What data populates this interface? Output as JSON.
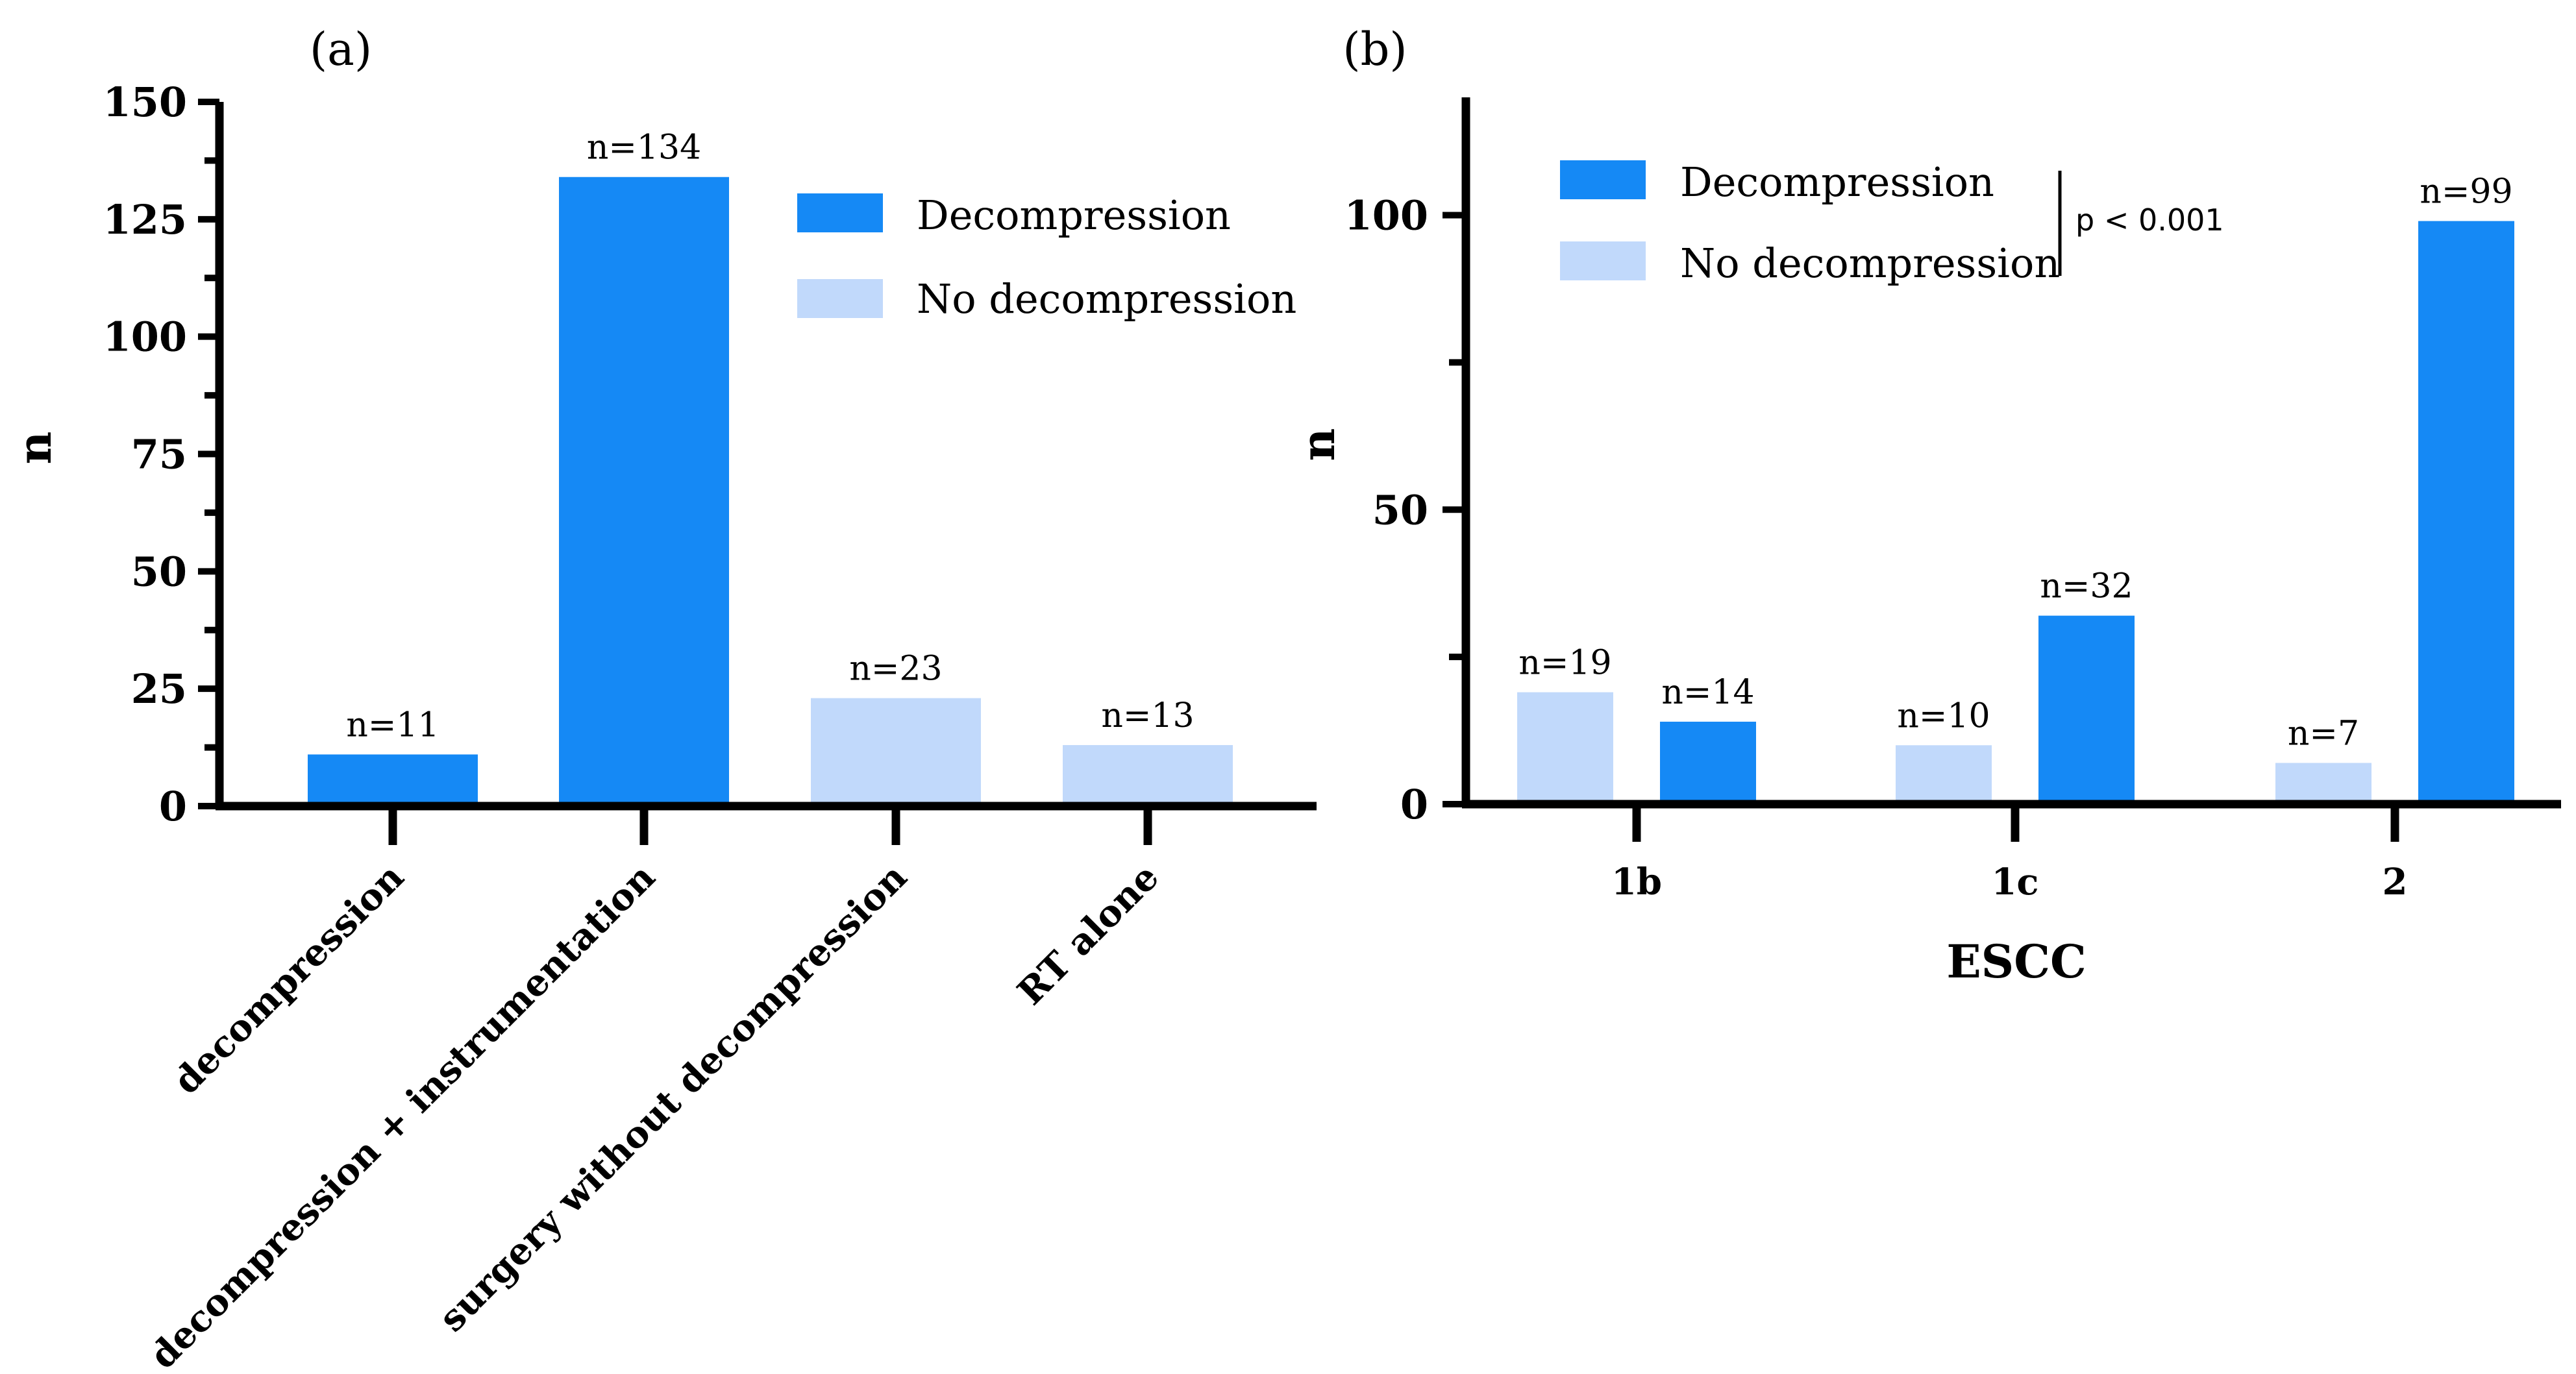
{
  "colors": {
    "decompression": "#1589F5",
    "no_decompression": "#C1D9FB",
    "axis": "#000000"
  },
  "chart_data": [
    {
      "panel_label": "(a)",
      "type": "bar",
      "ylabel": "n",
      "xlabel": "",
      "ylim": [
        0,
        150
      ],
      "y_ticks": [
        "0",
        "25",
        "50",
        "75",
        "100",
        "125",
        "150"
      ],
      "categories": [
        "decompression",
        "decompression + instrumentation",
        "surgery without decompression",
        "RT alone"
      ],
      "values": [
        11,
        134,
        23,
        13
      ],
      "bar_groups": [
        "decompression",
        "decompression",
        "no_decompression",
        "no_decompression"
      ],
      "data_labels": [
        "n=11",
        "n=134",
        "n=23",
        "n=13"
      ],
      "legend": [
        "Decompression",
        "No decompression"
      ],
      "legend_position": "top-right"
    },
    {
      "panel_label": "(b)",
      "type": "bar",
      "ylabel": "n",
      "xlabel": "ESCC",
      "ylim": [
        0,
        120
      ],
      "y_ticks": [
        "0",
        "50",
        "100"
      ],
      "categories": [
        "1b",
        "1c",
        "2"
      ],
      "series": [
        {
          "name": "No decompression",
          "values": [
            19,
            10,
            7
          ],
          "data_labels": [
            "n=19",
            "n=10",
            "n=7"
          ]
        },
        {
          "name": "Decompression",
          "values": [
            14,
            32,
            99
          ],
          "data_labels": [
            "n=14",
            "n=32",
            "n=99"
          ]
        }
      ],
      "legend": [
        "Decompression",
        "No decompression"
      ],
      "legend_position": "top",
      "annotation": "p < 0.001"
    }
  ]
}
